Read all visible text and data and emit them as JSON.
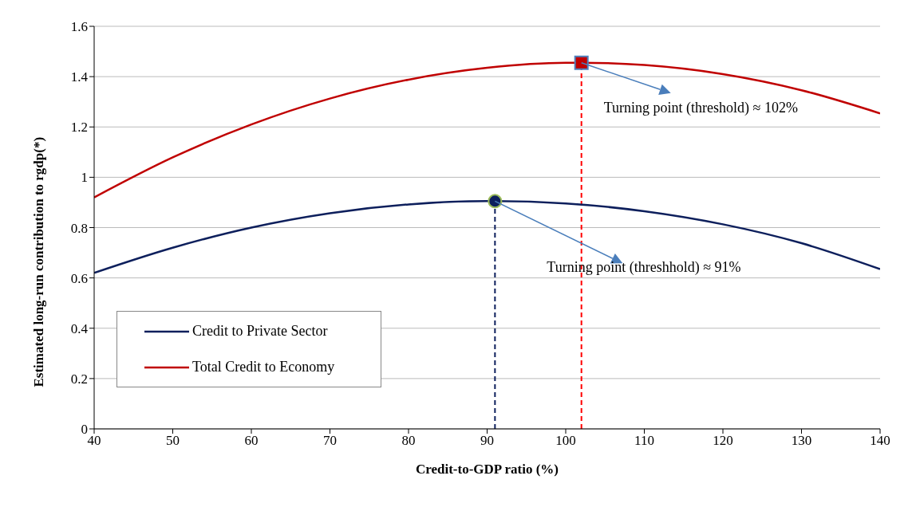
{
  "chart_data": {
    "type": "line",
    "xlabel": "Credit-to-GDP ratio (%)",
    "ylabel": "Estimated long-run contribution to rgdp(*)",
    "xlim": [
      40,
      140
    ],
    "xticks": [
      40,
      50,
      60,
      70,
      80,
      90,
      100,
      110,
      120,
      130,
      140
    ],
    "ylim": [
      0,
      1.6
    ],
    "yticks": [
      0,
      0.2,
      0.4,
      0.6,
      0.8,
      1,
      1.2,
      1.4,
      1.6
    ],
    "grid": "y",
    "legend": "bottom left",
    "marker": "none",
    "line_style": "solid",
    "series": [
      {
        "name": "Credit to Private Sector",
        "color": "#0d1f5c",
        "x": [
          40,
          50,
          60,
          70,
          80,
          90,
          91,
          100,
          110,
          120,
          130,
          140
        ],
        "values": [
          0.62,
          0.72,
          0.8,
          0.857,
          0.892,
          0.905,
          0.905,
          0.896,
          0.865,
          0.813,
          0.738,
          0.635
        ]
      },
      {
        "name": "Total Credit to Economy",
        "color": "#c00000",
        "x": [
          40,
          50,
          60,
          70,
          80,
          90,
          100,
          102,
          110,
          120,
          130,
          140
        ],
        "values": [
          0.92,
          1.079,
          1.21,
          1.313,
          1.388,
          1.435,
          1.455,
          1.455,
          1.446,
          1.41,
          1.346,
          1.254
        ]
      },
      {
        "type": "scatter",
        "marker": "circle",
        "color": "#0d1f5c",
        "x": [
          91
        ],
        "values": [
          0.905
        ]
      },
      {
        "type": "scatter",
        "marker": "square",
        "color": "#c00000",
        "x": [
          102
        ],
        "values": [
          1.455
        ]
      }
    ],
    "ref_lines": [
      {
        "axis": "x",
        "value": 91,
        "color": "#0d1f5c",
        "line_style": "dashed"
      },
      {
        "axis": "x",
        "value": 102,
        "color": "#ff0000",
        "line_style": "dashed"
      }
    ],
    "annotations": [
      {
        "text": "Turning point (threshold) ≈ 102%",
        "x": 102,
        "y": 1.455
      },
      {
        "text": "Turning point (threshhold) ≈ 91%",
        "x": 91,
        "y": 0.905
      }
    ]
  }
}
